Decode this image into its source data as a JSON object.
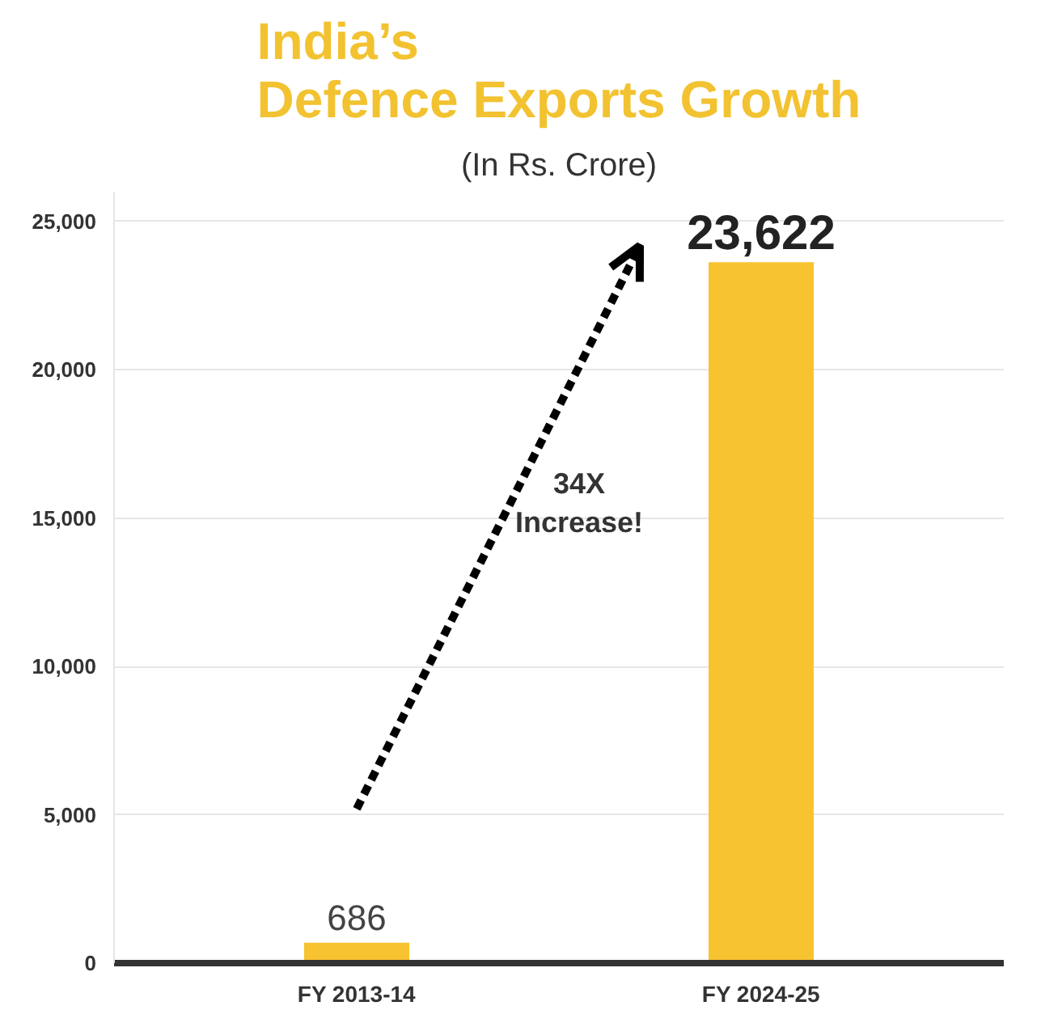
{
  "chart_data": {
    "type": "bar",
    "title": "India’s\nDefence Exports Growth",
    "subtitle": "(In Rs. Crore)",
    "categories": [
      "FY 2013-14",
      "FY 2024-25"
    ],
    "values": [
      686,
      23622
    ],
    "color": "#f7c331",
    "value_labels": [
      "686",
      "23,622"
    ],
    "ylim": [
      0,
      26000
    ],
    "yticks": [
      0,
      {
        "value": 5000,
        "label": "5,000"
      },
      {
        "value": 10000,
        "label": "10,000"
      },
      {
        "value": 15000,
        "label": "15,000"
      },
      {
        "value": 20000,
        "label": "20,000"
      },
      {
        "value": 25000,
        "label": "25,000"
      }
    ],
    "grid": "y",
    "annotations": [
      "34X\nIncrease!"
    ]
  }
}
